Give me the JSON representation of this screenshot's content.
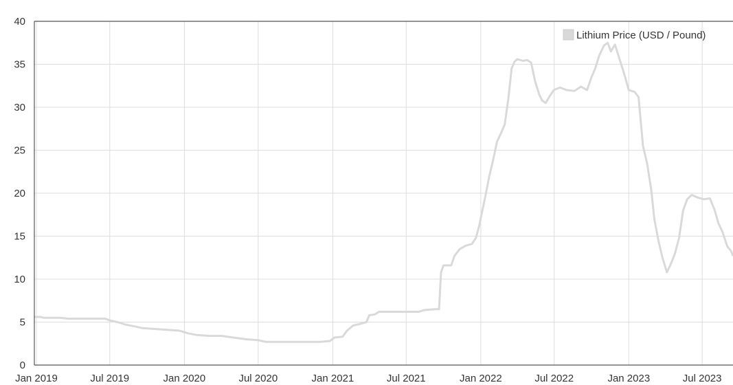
{
  "chart_data": {
    "type": "line",
    "title": "",
    "xlabel": "",
    "ylabel": "",
    "ylim": [
      0,
      40
    ],
    "xlim": [
      "2018-12-27",
      "2023-09-15"
    ],
    "yticks": [
      0,
      5,
      10,
      15,
      20,
      25,
      30,
      35,
      40
    ],
    "xticks": [
      {
        "date": "2019-01-01",
        "label": "Jan 2019"
      },
      {
        "date": "2019-07-01",
        "label": "Jul 2019"
      },
      {
        "date": "2020-01-01",
        "label": "Jan 2020"
      },
      {
        "date": "2020-07-01",
        "label": "Jul 2020"
      },
      {
        "date": "2021-01-01",
        "label": "Jan 2021"
      },
      {
        "date": "2021-07-01",
        "label": "Jul 2021"
      },
      {
        "date": "2022-01-01",
        "label": "Jan 2022"
      },
      {
        "date": "2022-07-01",
        "label": "Jul 2022"
      },
      {
        "date": "2023-01-01",
        "label": "Jan 2023"
      },
      {
        "date": "2023-07-01",
        "label": "Jul 2023"
      }
    ],
    "grid": true,
    "legend_position": "top-right",
    "series": [
      {
        "name": "Lithium Price (USD / Pound)",
        "color": "#d9d9d9",
        "points": [
          [
            "2018-12-27",
            5.6
          ],
          [
            "2019-01-10",
            5.6
          ],
          [
            "2019-01-20",
            5.5
          ],
          [
            "2019-02-15",
            5.5
          ],
          [
            "2019-03-01",
            5.5
          ],
          [
            "2019-03-20",
            5.4
          ],
          [
            "2019-04-15",
            5.4
          ],
          [
            "2019-05-10",
            5.4
          ],
          [
            "2019-06-01",
            5.4
          ],
          [
            "2019-06-20",
            5.4
          ],
          [
            "2019-07-01",
            5.2
          ],
          [
            "2019-07-20",
            5.0
          ],
          [
            "2019-08-10",
            4.7
          ],
          [
            "2019-09-01",
            4.5
          ],
          [
            "2019-09-20",
            4.3
          ],
          [
            "2019-10-20",
            4.2
          ],
          [
            "2019-11-20",
            4.1
          ],
          [
            "2019-12-20",
            4.0
          ],
          [
            "2020-01-10",
            3.7
          ],
          [
            "2020-02-01",
            3.5
          ],
          [
            "2020-03-01",
            3.4
          ],
          [
            "2020-04-01",
            3.4
          ],
          [
            "2020-05-01",
            3.2
          ],
          [
            "2020-06-01",
            3.0
          ],
          [
            "2020-07-01",
            2.9
          ],
          [
            "2020-07-20",
            2.7
          ],
          [
            "2020-09-01",
            2.7
          ],
          [
            "2020-10-15",
            2.7
          ],
          [
            "2020-12-01",
            2.7
          ],
          [
            "2020-12-25",
            2.8
          ],
          [
            "2021-01-05",
            3.2
          ],
          [
            "2021-01-25",
            3.3
          ],
          [
            "2021-02-05",
            4.0
          ],
          [
            "2021-02-20",
            4.6
          ],
          [
            "2021-03-10",
            4.8
          ],
          [
            "2021-03-25",
            5.0
          ],
          [
            "2021-04-01",
            5.8
          ],
          [
            "2021-04-15",
            5.9
          ],
          [
            "2021-04-25",
            6.2
          ],
          [
            "2021-05-15",
            6.2
          ],
          [
            "2021-06-15",
            6.2
          ],
          [
            "2021-07-15",
            6.2
          ],
          [
            "2021-08-01",
            6.2
          ],
          [
            "2021-08-15",
            6.4
          ],
          [
            "2021-09-10",
            6.5
          ],
          [
            "2021-09-20",
            6.5
          ],
          [
            "2021-09-25",
            10.8
          ],
          [
            "2021-10-01",
            11.6
          ],
          [
            "2021-10-20",
            11.6
          ],
          [
            "2021-10-28",
            12.7
          ],
          [
            "2021-11-10",
            13.5
          ],
          [
            "2021-11-25",
            13.9
          ],
          [
            "2021-12-10",
            14.1
          ],
          [
            "2021-12-20",
            14.8
          ],
          [
            "2021-12-28",
            16.2
          ],
          [
            "2022-01-05",
            18.0
          ],
          [
            "2022-01-12",
            19.6
          ],
          [
            "2022-01-22",
            22.0
          ],
          [
            "2022-02-01",
            24.0
          ],
          [
            "2022-02-10",
            26.0
          ],
          [
            "2022-02-20",
            27.0
          ],
          [
            "2022-03-01",
            28.0
          ],
          [
            "2022-03-10",
            31.0
          ],
          [
            "2022-03-18",
            34.5
          ],
          [
            "2022-03-25",
            35.3
          ],
          [
            "2022-04-01",
            35.6
          ],
          [
            "2022-04-15",
            35.4
          ],
          [
            "2022-04-25",
            35.5
          ],
          [
            "2022-05-05",
            35.2
          ],
          [
            "2022-05-15",
            33.0
          ],
          [
            "2022-05-25",
            31.5
          ],
          [
            "2022-06-01",
            30.8
          ],
          [
            "2022-06-10",
            30.5
          ],
          [
            "2022-06-20",
            31.3
          ],
          [
            "2022-06-30",
            32.0
          ],
          [
            "2022-07-15",
            32.3
          ],
          [
            "2022-08-01",
            32.0
          ],
          [
            "2022-08-20",
            31.9
          ],
          [
            "2022-09-05",
            32.4
          ],
          [
            "2022-09-20",
            32.0
          ],
          [
            "2022-10-01",
            33.5
          ],
          [
            "2022-10-10",
            34.5
          ],
          [
            "2022-10-20",
            36.0
          ],
          [
            "2022-11-01",
            37.2
          ],
          [
            "2022-11-10",
            37.5
          ],
          [
            "2022-11-18",
            36.5
          ],
          [
            "2022-11-28",
            37.3
          ],
          [
            "2022-12-10",
            35.5
          ],
          [
            "2022-12-20",
            34.0
          ],
          [
            "2023-01-01",
            32.0
          ],
          [
            "2023-01-15",
            31.8
          ],
          [
            "2023-01-25",
            31.2
          ],
          [
            "2023-02-05",
            25.5
          ],
          [
            "2023-02-15",
            23.5
          ],
          [
            "2023-02-25",
            20.5
          ],
          [
            "2023-03-05",
            17.0
          ],
          [
            "2023-03-15",
            14.5
          ],
          [
            "2023-03-25",
            12.5
          ],
          [
            "2023-04-05",
            10.8
          ],
          [
            "2023-04-15",
            11.8
          ],
          [
            "2023-04-25",
            13.0
          ],
          [
            "2023-05-05",
            14.8
          ],
          [
            "2023-05-15",
            18.0
          ],
          [
            "2023-05-25",
            19.3
          ],
          [
            "2023-06-05",
            19.8
          ],
          [
            "2023-06-20",
            19.5
          ],
          [
            "2023-07-05",
            19.3
          ],
          [
            "2023-07-20",
            19.4
          ],
          [
            "2023-08-01",
            18.0
          ],
          [
            "2023-08-10",
            16.5
          ],
          [
            "2023-08-20",
            15.5
          ],
          [
            "2023-09-01",
            13.8
          ],
          [
            "2023-09-10",
            13.3
          ],
          [
            "2023-09-15",
            12.7
          ]
        ]
      }
    ]
  }
}
